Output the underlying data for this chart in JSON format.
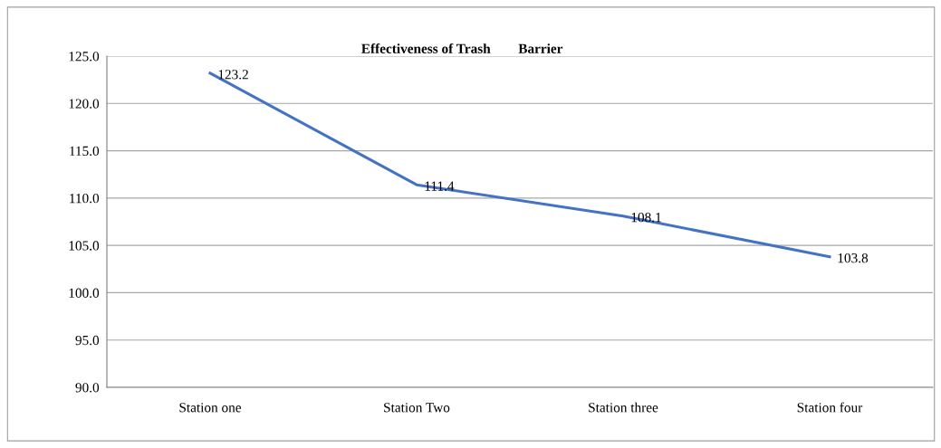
{
  "chart_data": {
    "type": "line",
    "title": "Effectiveness of Trash        Barrier",
    "categories": [
      "Station one",
      "Station Two",
      "Station three",
      "Station four"
    ],
    "series": [
      {
        "color": "#4472c4",
        "values": [
          123.2,
          111.4,
          108.1,
          103.8
        ]
      }
    ],
    "ylim": [
      90,
      125
    ],
    "yticks": [
      {
        "value": 90,
        "label": "90.0"
      },
      {
        "value": 95,
        "label": "95.0"
      },
      {
        "value": 100,
        "label": "100.0"
      },
      {
        "value": 105,
        "label": "105.0"
      },
      {
        "value": 110,
        "label": "110.0"
      },
      {
        "value": 115,
        "label": "115.0"
      },
      {
        "value": 120,
        "label": "120.0"
      },
      {
        "value": 125,
        "label": "125.0"
      }
    ],
    "grid": "y",
    "data_labels": true,
    "legend": false,
    "marker": "none",
    "line_style": "solid"
  }
}
